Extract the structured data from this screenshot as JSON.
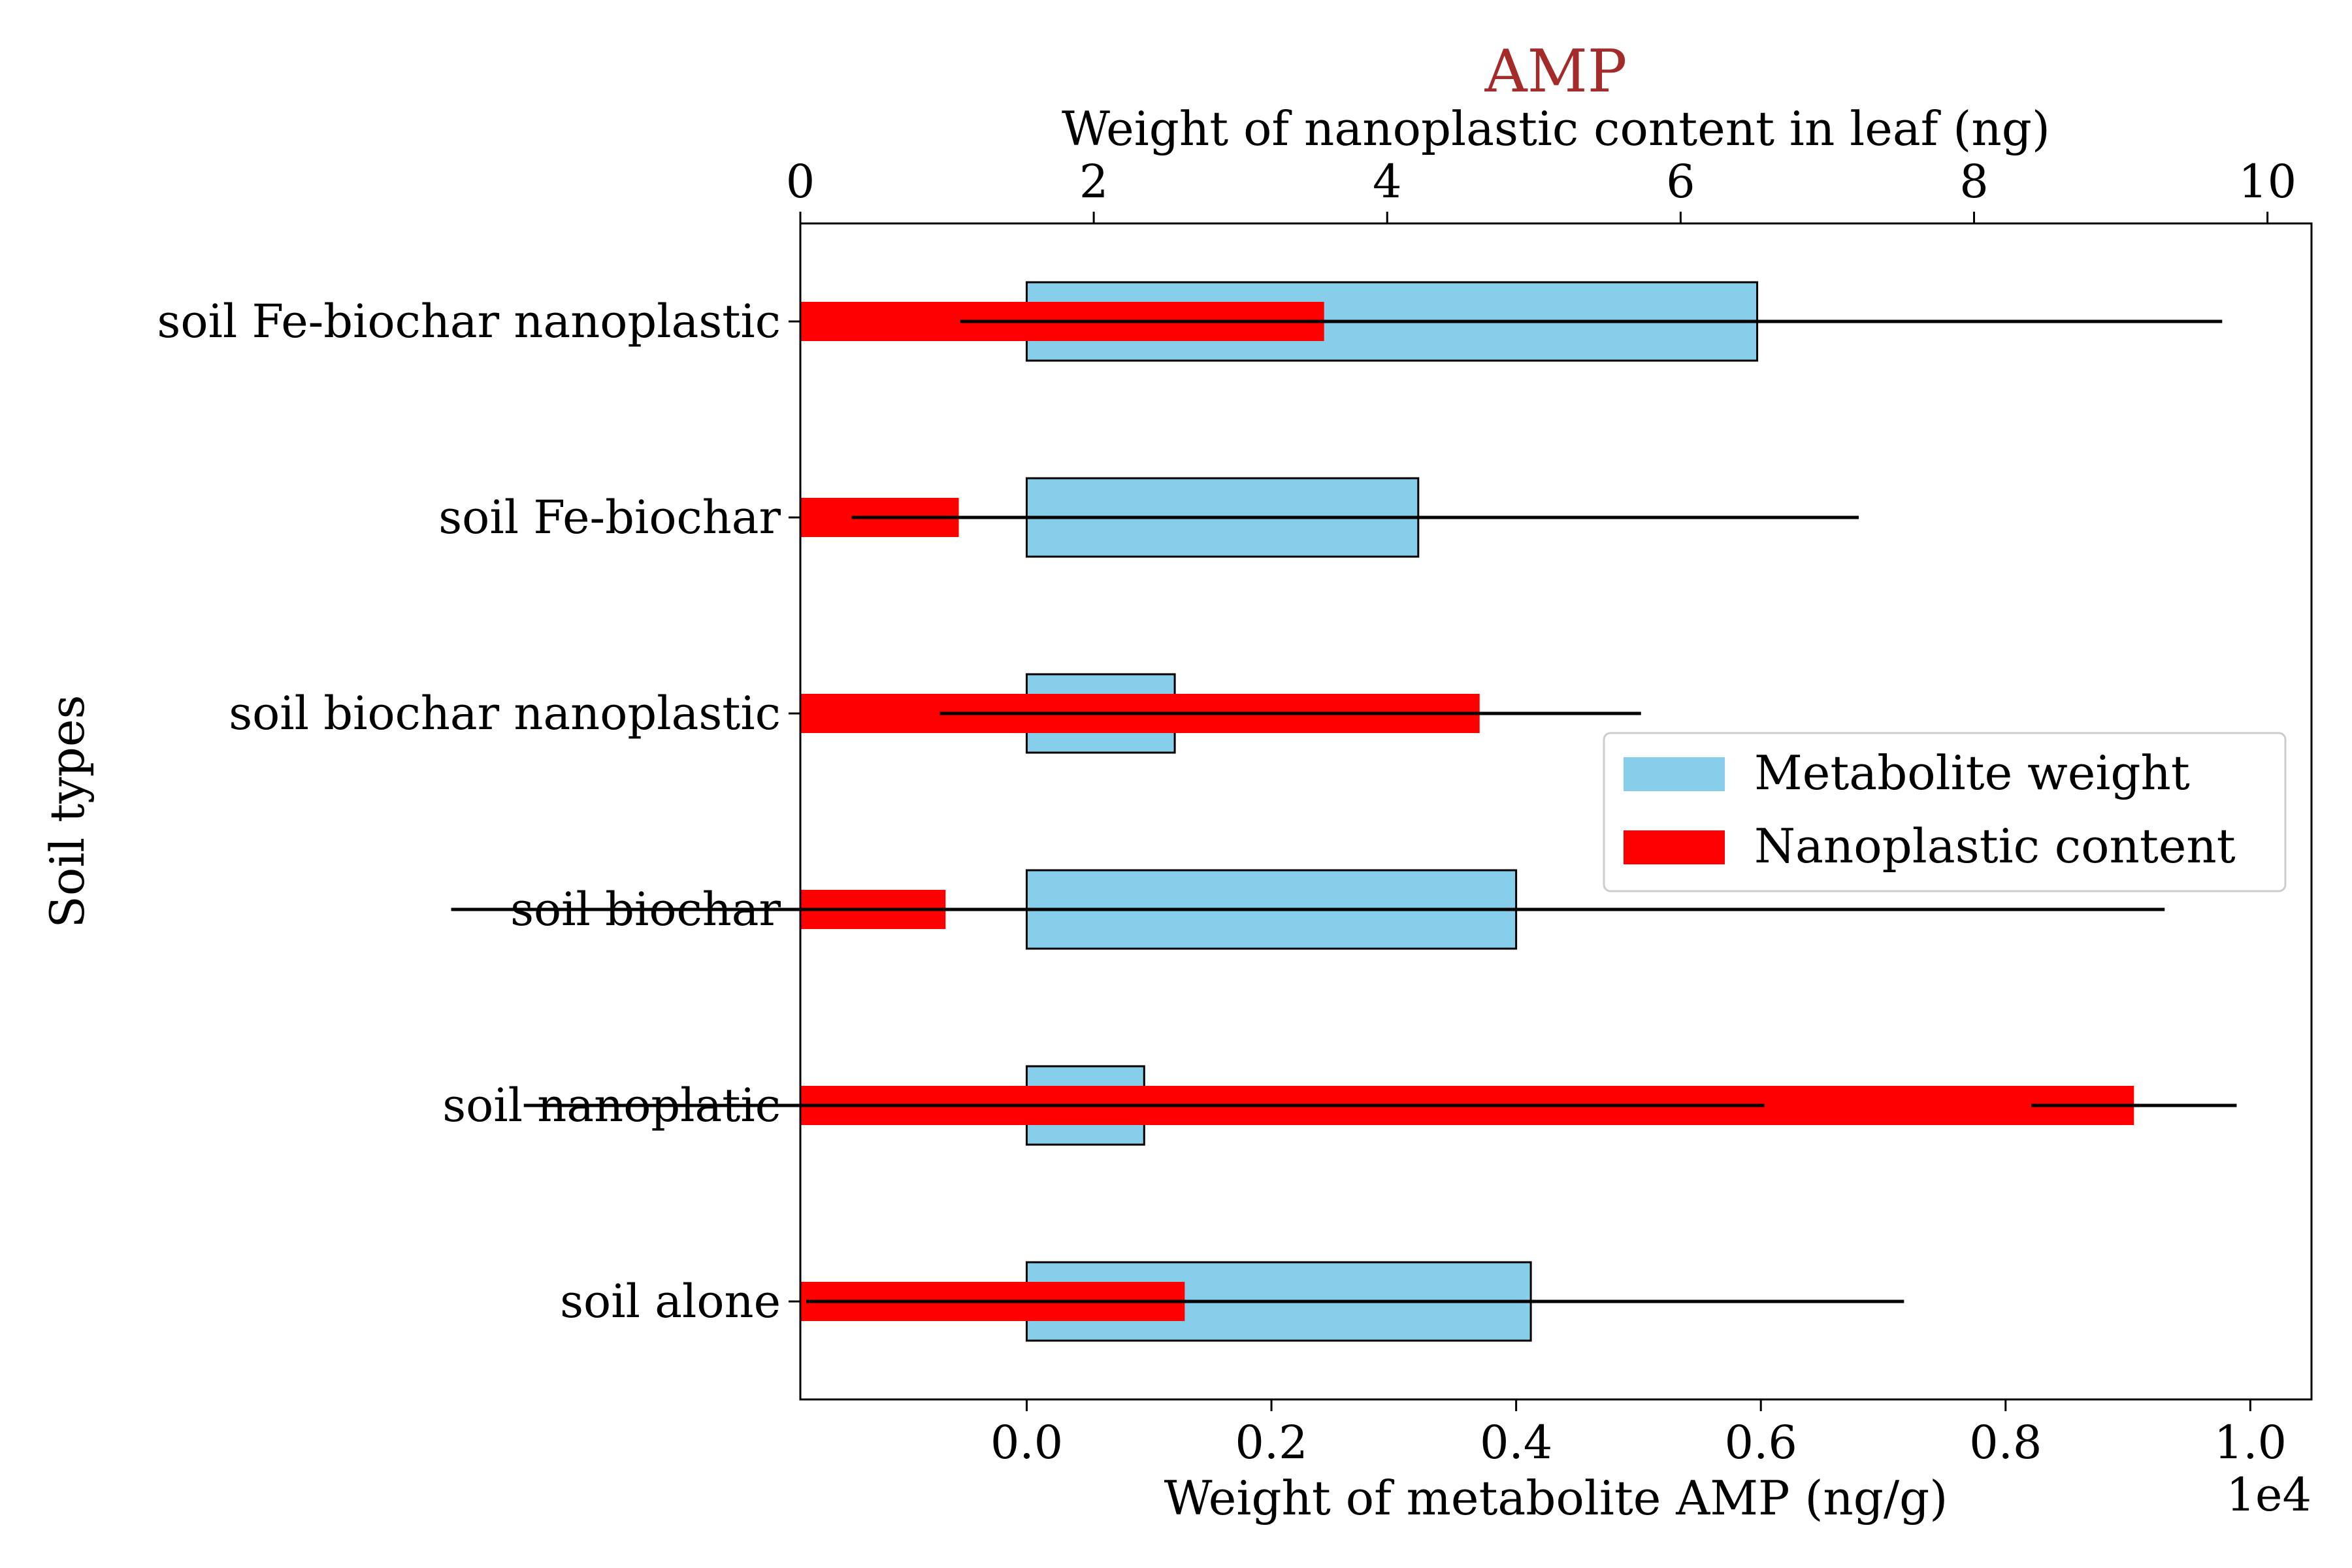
{
  "chart_data": {
    "type": "bar",
    "title": "AMP",
    "title_color": "#a52a2a",
    "ylabel": "Soil types",
    "categories": [
      "soil Fe-biochar nanoplastic",
      "soil Fe-biochar",
      "soil biochar nanoplastic",
      "soil biochar",
      "soil nanoplatic",
      "soil alone"
    ],
    "bottom_axis": {
      "label": "Weight of metabolite AMP (ng/g)",
      "offset_text": "1e4",
      "range": [
        -1850,
        10500
      ],
      "ticks": [
        0,
        2000,
        4000,
        6000,
        8000,
        10000
      ],
      "tick_labels": [
        "0.0",
        "0.2",
        "0.4",
        "0.6",
        "0.8",
        "1.0"
      ]
    },
    "top_axis": {
      "label": "Weight of nanoplastic content in leaf (ng)",
      "range": [
        0,
        10.3
      ],
      "ticks": [
        0,
        2,
        4,
        6,
        8,
        10
      ],
      "tick_labels": [
        "0",
        "2",
        "4",
        "6",
        "8",
        "10"
      ]
    },
    "series": [
      {
        "name": "Metabolite weight",
        "axis": "bottom",
        "color": "#87ceeb",
        "values": [
          5970,
          3200,
          1210,
          4000,
          960,
          4120
        ],
        "errors": [
          3800,
          3600,
          1920,
          5300,
          5070,
          3050
        ]
      },
      {
        "name": "Nanoplastic content",
        "axis": "top",
        "color": "#ff0000",
        "values": [
          3.57,
          1.08,
          4.63,
          0.99,
          9.09,
          2.62
        ],
        "errors": [
          2.48,
          0.73,
          1.1,
          3.37,
          0.7,
          2.58
        ]
      }
    ],
    "legend": {
      "position": "center-right",
      "entries": [
        "Metabolite weight",
        "Nanoplastic content"
      ]
    },
    "grid": false
  }
}
